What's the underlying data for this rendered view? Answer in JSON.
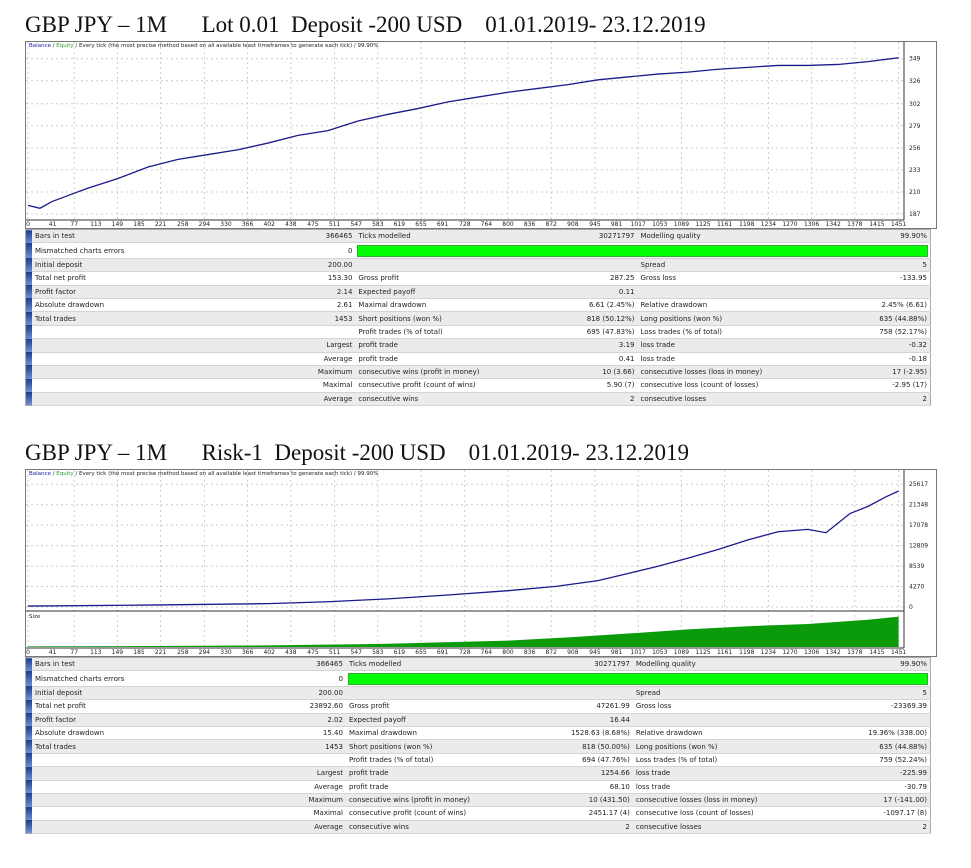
{
  "reports": [
    {
      "title": "GBP JPY – 1M      Lot 0.01  Deposit -200 USD    01.01.2019- 23.12.2019",
      "caption": {
        "balance": "Balance",
        "equity": "Equity",
        "rest": " / Every tick (the most precise method based on all available least timeframes to generate each tick) / 99.90%"
      },
      "table": [
        [
          "Bars in test",
          "366465",
          "Ticks modelled",
          "30271797",
          "Modelling quality",
          "99.90%"
        ],
        [
          "Mismatched charts errors",
          "0",
          "",
          "",
          "",
          ""
        ],
        [
          "Initial deposit",
          "200.00",
          "",
          "",
          "Spread",
          "5"
        ],
        [
          "Total net profit",
          "153.30",
          "Gross profit",
          "287.25",
          "Gross loss",
          "-133.95"
        ],
        [
          "Profit factor",
          "2.14",
          "Expected payoff",
          "0.11",
          "",
          ""
        ],
        [
          "Absolute drawdown",
          "2.61",
          "Maximal drawdown",
          "6.61 (2.45%)",
          "Relative drawdown",
          "2.45% (6.61)"
        ],
        [
          "Total trades",
          "1453",
          "Short positions (won %)",
          "818 (50.12%)",
          "Long positions (won %)",
          "635 (44.88%)"
        ],
        [
          "",
          "",
          "Profit trades (% of total)",
          "695 (47.83%)",
          "Loss trades (% of total)",
          "758 (52.17%)"
        ],
        [
          "",
          "Largest",
          "profit trade",
          "3.19",
          "loss trade",
          "-0.32"
        ],
        [
          "",
          "Average",
          "profit trade",
          "0.41",
          "loss trade",
          "-0.18"
        ],
        [
          "",
          "Maximum",
          "consecutive wins (profit in money)",
          "10 (3.66)",
          "consecutive losses (loss in money)",
          "17 (-2.95)"
        ],
        [
          "",
          "Maximal",
          "consecutive profit (count of wins)",
          "5.90 (7)",
          "consecutive loss (count of losses)",
          "-2.95 (17)"
        ],
        [
          "",
          "Average",
          "consecutive wins",
          "2",
          "consecutive losses",
          "2"
        ]
      ]
    },
    {
      "title": "GBP JPY – 1M      Risk-1  Deposit -200 USD    01.01.2019- 23.12.2019",
      "caption": {
        "balance": "Balance",
        "equity": "Equity",
        "rest": " / Every tick (the most precise method based on all available least timeframes to generate each tick) / 99.90%"
      },
      "size_label": "Size",
      "table": [
        [
          "Bars in test",
          "366465",
          "Ticks modelled",
          "30271797",
          "Modelling quality",
          "99.90%"
        ],
        [
          "Mismatched charts errors",
          "0",
          "",
          "",
          "",
          ""
        ],
        [
          "Initial deposit",
          "200.00",
          "",
          "",
          "Spread",
          "5"
        ],
        [
          "Total net profit",
          "23892.60",
          "Gross profit",
          "47261.99",
          "Gross loss",
          "-23369.39"
        ],
        [
          "Profit factor",
          "2.02",
          "Expected payoff",
          "16.44",
          "",
          ""
        ],
        [
          "Absolute drawdown",
          "15.40",
          "Maximal drawdown",
          "1528.63 (8.68%)",
          "Relative drawdown",
          "19.36% (338.00)"
        ],
        [
          "Total trades",
          "1453",
          "Short positions (won %)",
          "818 (50.00%)",
          "Long positions (won %)",
          "635 (44.88%)"
        ],
        [
          "",
          "",
          "Profit trades (% of total)",
          "694 (47.76%)",
          "Loss trades (% of total)",
          "759 (52.24%)"
        ],
        [
          "",
          "Largest",
          "profit trade",
          "1254.66",
          "loss trade",
          "-225.99"
        ],
        [
          "",
          "Average",
          "profit trade",
          "68.10",
          "loss trade",
          "-30.79"
        ],
        [
          "",
          "Maximum",
          "consecutive wins (profit in money)",
          "10 (431.50)",
          "consecutive losses (loss in money)",
          "17 (-141.00)"
        ],
        [
          "",
          "Maximal",
          "consecutive profit (count of wins)",
          "2451.17 (4)",
          "consecutive loss (count of losses)",
          "-1097.17 (8)"
        ],
        [
          "",
          "Average",
          "consecutive wins",
          "2",
          "consecutive losses",
          "2"
        ]
      ]
    }
  ],
  "chart_data": [
    {
      "type": "line",
      "series_color": "#1a1a8c",
      "x_ticks": [
        0,
        41,
        77,
        113,
        149,
        185,
        221,
        258,
        294,
        330,
        366,
        402,
        438,
        475,
        511,
        547,
        583,
        619,
        655,
        691,
        728,
        764,
        800,
        836,
        872,
        908,
        945,
        981,
        1017,
        1053,
        1089,
        1125,
        1161,
        1198,
        1234,
        1270,
        1306,
        1342,
        1378,
        1415,
        1451
      ],
      "y_ticks": [
        187,
        210,
        233,
        256,
        279,
        302,
        326,
        349
      ],
      "xlim": [
        0,
        1460
      ],
      "ylim": [
        187,
        356
      ],
      "grid": true,
      "x": [
        0,
        20,
        40,
        70,
        100,
        150,
        200,
        250,
        300,
        350,
        400,
        450,
        500,
        550,
        600,
        650,
        700,
        750,
        800,
        850,
        900,
        950,
        1000,
        1050,
        1100,
        1150,
        1200,
        1250,
        1300,
        1350,
        1400,
        1451
      ],
      "y": [
        196,
        193,
        200,
        207,
        214,
        224,
        236,
        244,
        249,
        254,
        261,
        269,
        274,
        284,
        291,
        297,
        304,
        309,
        314,
        318,
        322,
        327,
        330,
        333,
        335,
        338,
        340,
        342,
        342,
        343,
        346,
        350
      ]
    },
    {
      "type": "line",
      "series_color": "#1a1a8c",
      "x_ticks": [
        0,
        41,
        77,
        113,
        149,
        185,
        221,
        258,
        294,
        330,
        366,
        402,
        438,
        475,
        511,
        547,
        583,
        619,
        655,
        691,
        728,
        764,
        800,
        836,
        872,
        908,
        945,
        981,
        1017,
        1053,
        1089,
        1125,
        1161,
        1198,
        1234,
        1270,
        1306,
        1342,
        1378,
        1415,
        1451
      ],
      "y_ticks": [
        0,
        4270,
        8539,
        12809,
        17078,
        21348,
        25617
      ],
      "xlim": [
        0,
        1460
      ],
      "ylim": [
        0,
        26500
      ],
      "grid": true,
      "x": [
        0,
        200,
        400,
        500,
        600,
        700,
        800,
        880,
        950,
        1000,
        1050,
        1100,
        1150,
        1200,
        1250,
        1300,
        1330,
        1350,
        1370,
        1400,
        1430,
        1451
      ],
      "y": [
        200,
        400,
        700,
        1100,
        1700,
        2500,
        3400,
        4300,
        5500,
        7000,
        8500,
        10200,
        12000,
        14000,
        15700,
        16200,
        15500,
        17500,
        19500,
        21000,
        23000,
        24200
      ],
      "size_x": [
        0,
        200,
        400,
        600,
        800,
        900,
        1000,
        1100,
        1200,
        1300,
        1400,
        1451
      ],
      "size_y": [
        0.02,
        0.03,
        0.05,
        0.1,
        0.2,
        0.3,
        0.42,
        0.55,
        0.65,
        0.72,
        0.85,
        0.95
      ]
    }
  ]
}
